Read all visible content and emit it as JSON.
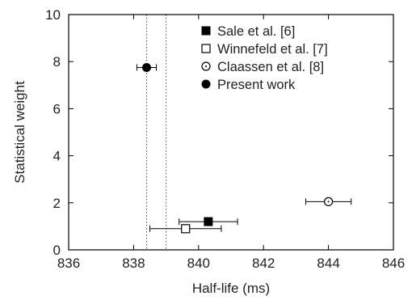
{
  "chart_data": {
    "type": "scatter",
    "title": "",
    "xlabel": "Half-life (ms)",
    "ylabel": "Statistical weight",
    "xlim": [
      836,
      846
    ],
    "ylim": [
      0,
      10
    ],
    "x_ticks": [
      836,
      838,
      840,
      842,
      844,
      846
    ],
    "y_ticks": [
      0,
      2,
      4,
      6,
      8,
      10
    ],
    "grid": false,
    "legend_position": "top-right",
    "reference_lines_x": [
      838.4,
      839.0
    ],
    "series": [
      {
        "name": "Sale et al. [6]",
        "marker": "filled-square",
        "x": 840.3,
        "y": 1.2,
        "x_err": 0.9
      },
      {
        "name": "Winnefeld et al. [7]",
        "marker": "open-square",
        "x": 839.6,
        "y": 0.9,
        "x_err": 1.1
      },
      {
        "name": "Claassen et al. [8]",
        "marker": "open-circle",
        "x": 844.0,
        "y": 2.05,
        "x_err": 0.7
      },
      {
        "name": "Present work",
        "marker": "filled-circle",
        "x": 838.4,
        "y": 7.75,
        "x_err": 0.3
      }
    ]
  }
}
